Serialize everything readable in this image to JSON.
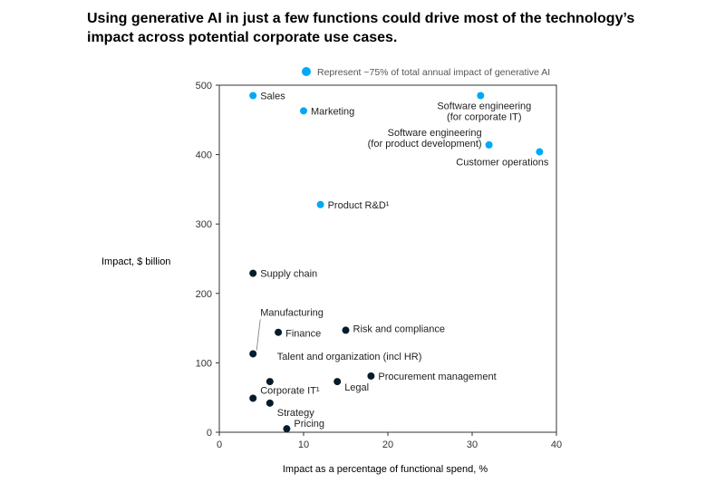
{
  "chart_data": {
    "type": "scatter",
    "title": "Using generative AI in just a few functions could drive most of the technology’s impact across potential corporate use cases.",
    "xlabel": "Impact as a percentage of functional spend, %",
    "ylabel": "Impact, $ billion",
    "xlim": [
      0,
      40
    ],
    "ylim": [
      0,
      500
    ],
    "x_ticks": [
      0,
      10,
      20,
      30,
      40
    ],
    "y_ticks": [
      0,
      100,
      200,
      300,
      400,
      500
    ],
    "grid": false,
    "legend": {
      "position": "top",
      "entries": [
        {
          "label": "Represent ~75% of total annual impact of generative AI",
          "color": "#00a9f4"
        }
      ]
    },
    "colors": {
      "highlight": "#00a9f4",
      "other": "#051c2c",
      "axis": "#333333"
    },
    "points": [
      {
        "label": "Sales",
        "x": 4,
        "y": 485,
        "highlight": true
      },
      {
        "label": "Marketing",
        "x": 10,
        "y": 463,
        "highlight": true
      },
      {
        "label": "Software engineering (for corporate IT)",
        "lines": [
          "Software engineering",
          "(for corporate IT)"
        ],
        "x": 31,
        "y": 485,
        "highlight": true
      },
      {
        "label": "Software engineering (for product development)",
        "lines": [
          "Software engineering",
          "(for product development)"
        ],
        "x": 32,
        "y": 414,
        "highlight": true
      },
      {
        "label": "Customer operations",
        "x": 38,
        "y": 404,
        "highlight": true
      },
      {
        "label": "Product R&D¹",
        "x": 12,
        "y": 328,
        "highlight": true
      },
      {
        "label": "Supply chain",
        "x": 4,
        "y": 229,
        "highlight": false
      },
      {
        "label": "Manufacturing",
        "x": 4,
        "y": 113,
        "highlight": false
      },
      {
        "label": "Finance",
        "x": 7,
        "y": 144,
        "highlight": false
      },
      {
        "label": "Risk and compliance",
        "x": 15,
        "y": 147,
        "highlight": false
      },
      {
        "label": "Talent and organization (incl HR)",
        "x": 6,
        "y": 73,
        "highlight": false
      },
      {
        "label": "Procurement management",
        "x": 18,
        "y": 81,
        "highlight": false
      },
      {
        "label": "Legal",
        "x": 14,
        "y": 73,
        "highlight": false
      },
      {
        "label": "Corporate IT¹",
        "x": 4,
        "y": 49,
        "highlight": false
      },
      {
        "label": "Strategy",
        "x": 6,
        "y": 42,
        "highlight": false
      },
      {
        "label": "Pricing",
        "x": 8,
        "y": 5,
        "highlight": false
      }
    ]
  }
}
